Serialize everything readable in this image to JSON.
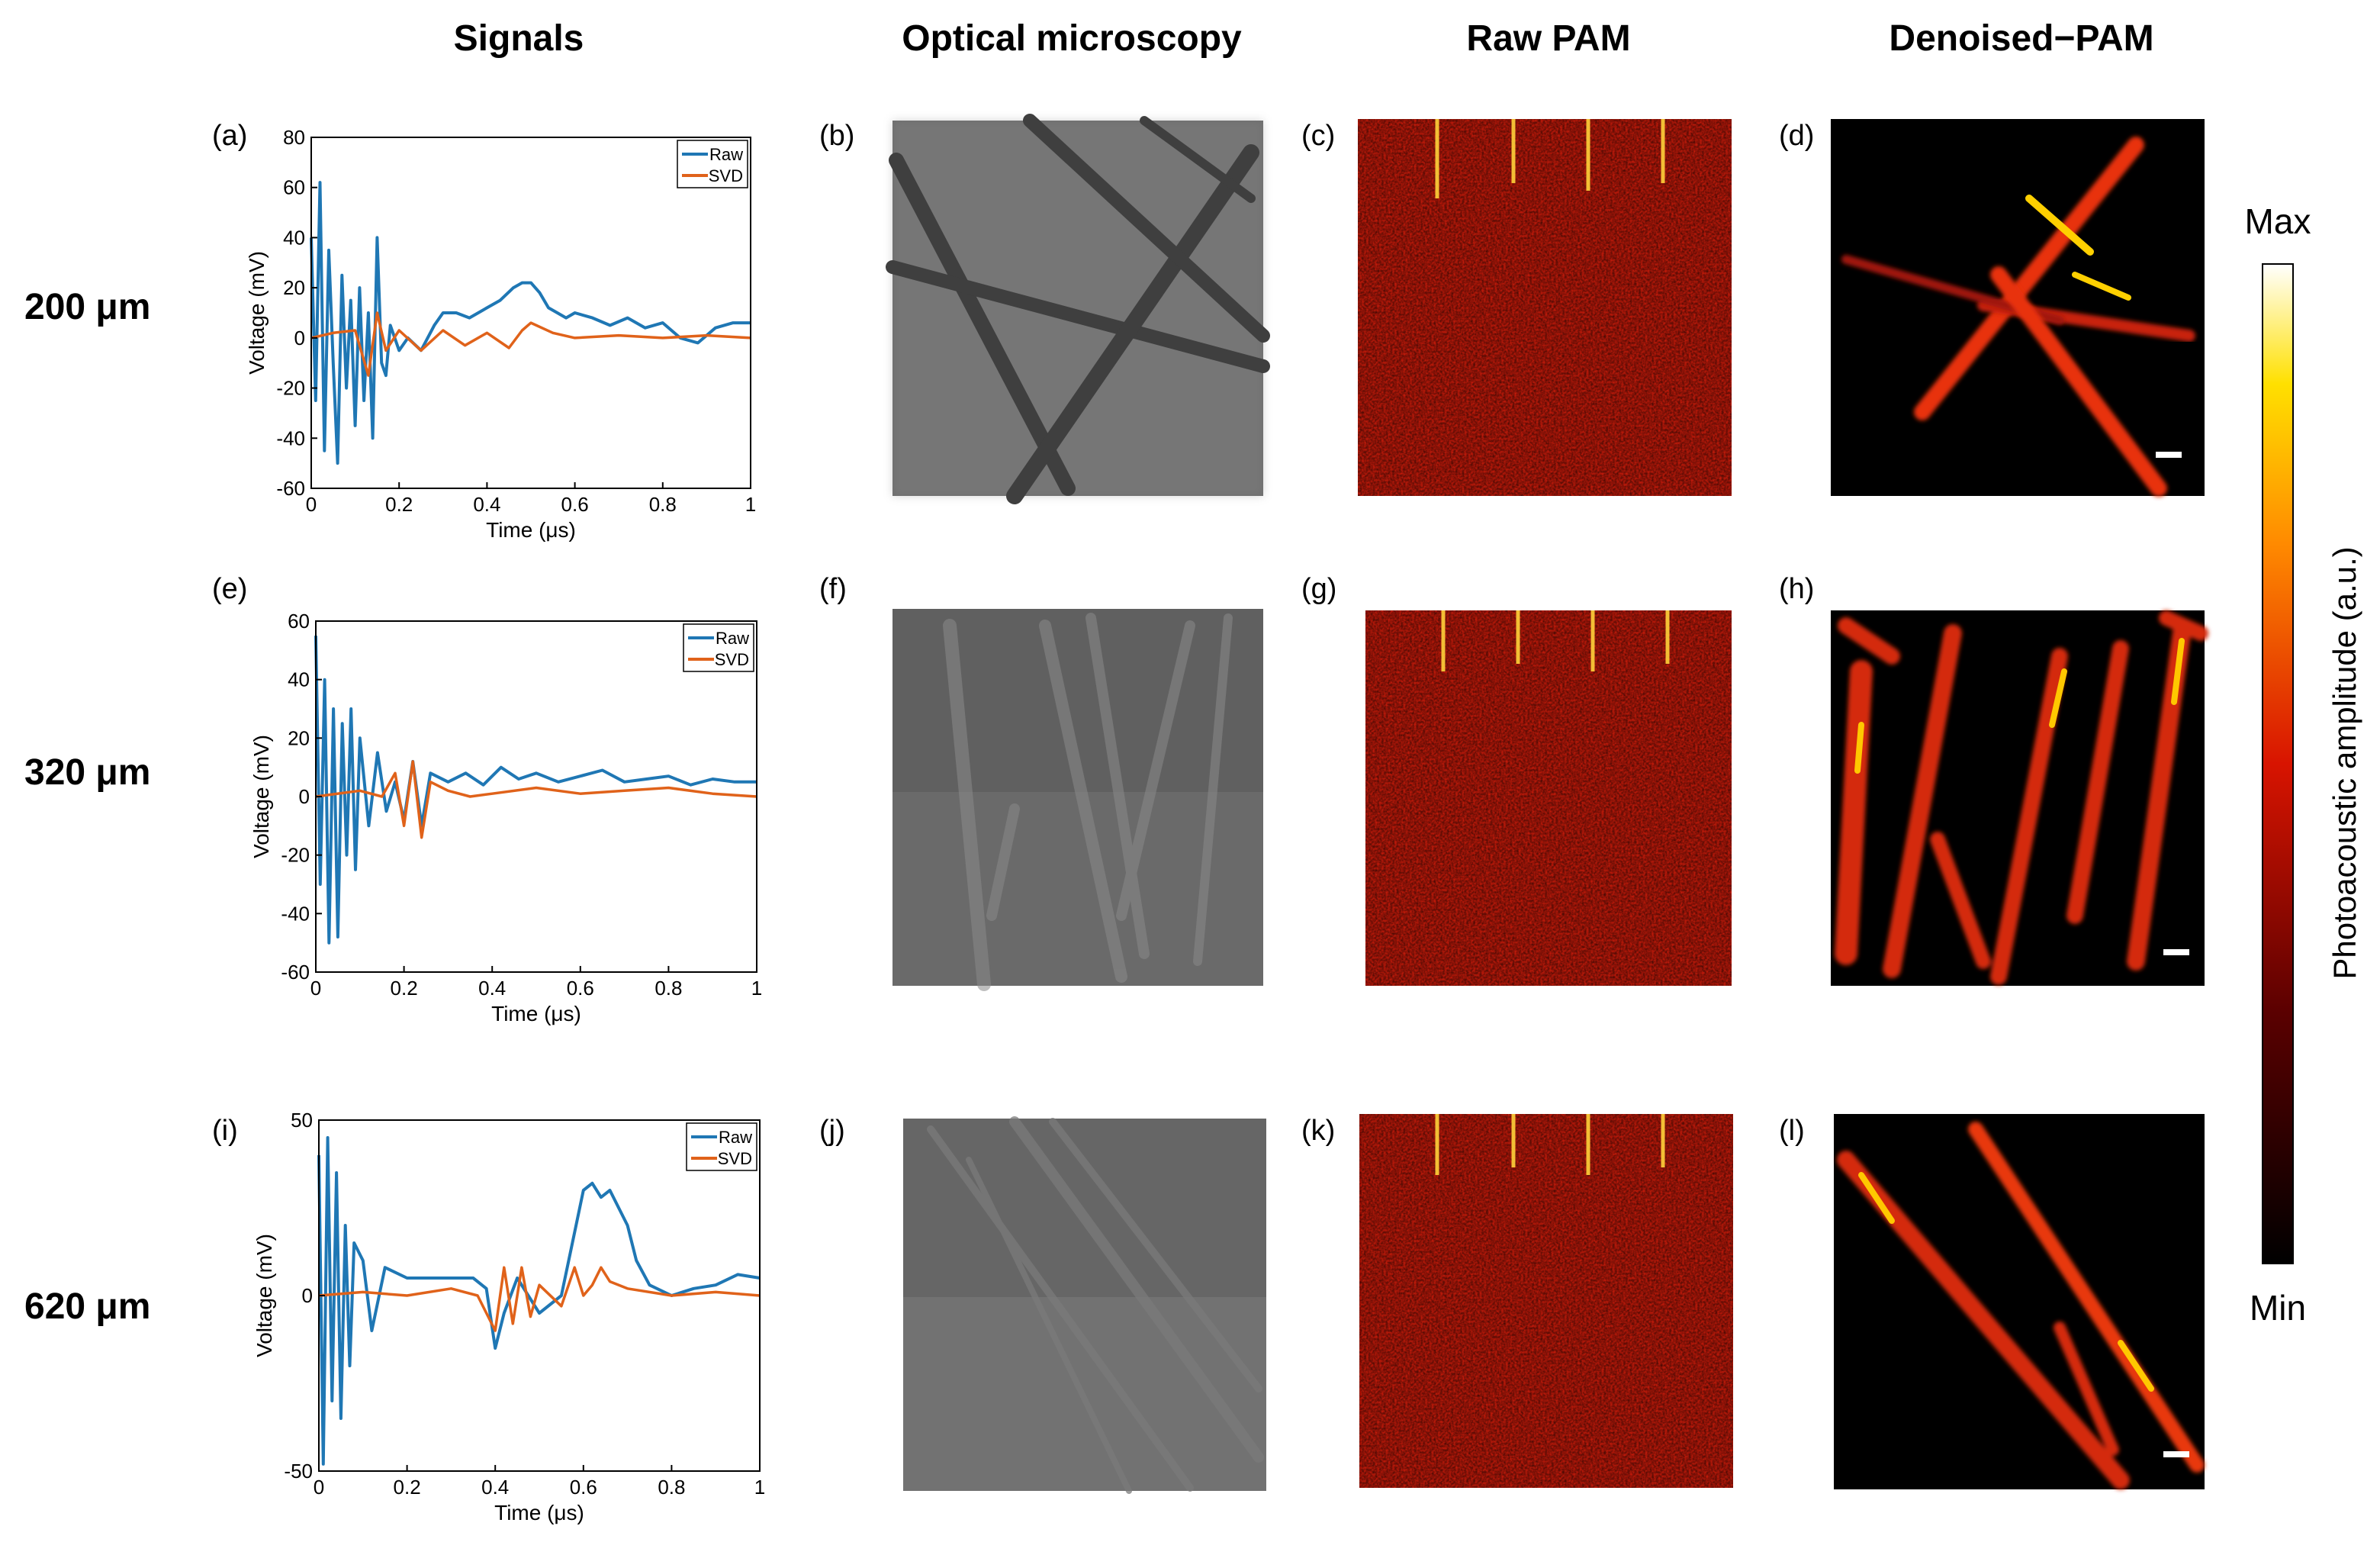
{
  "column_headers": [
    "Signals",
    "Optical microscopy",
    "Raw PAM",
    "Denoised−PAM"
  ],
  "row_labels": [
    "200 μm",
    "320 μm",
    "620 μm"
  ],
  "panel_labels": [
    "(a)",
    "(b)",
    "(c)",
    "(d)",
    "(e)",
    "(f)",
    "(g)",
    "(h)",
    "(i)",
    "(j)",
    "(k)",
    "(l)"
  ],
  "colorbar": {
    "max_label": "Max",
    "min_label": "Min",
    "title": "Photoacoustic amplitude (a.u.)"
  },
  "colors": {
    "raw": "#1f77b4",
    "svd": "#e0621a"
  },
  "chart_data": [
    {
      "type": "line",
      "panel": "(a)",
      "xlabel": "Time (μs)",
      "ylabel": "Voltage (mV)",
      "xlim": [
        0,
        1
      ],
      "ylim": [
        -60,
        80
      ],
      "xticks": [
        "0",
        "0.2",
        "0.4",
        "0.6",
        "0.8",
        "1"
      ],
      "yticks": [
        "-60",
        "-40",
        "-20",
        "0",
        "20",
        "40",
        "60",
        "80"
      ],
      "legend": [
        "Raw",
        "SVD"
      ],
      "series": [
        {
          "name": "Raw",
          "x": [
            0,
            0.01,
            0.02,
            0.03,
            0.04,
            0.05,
            0.06,
            0.07,
            0.08,
            0.09,
            0.1,
            0.11,
            0.12,
            0.13,
            0.14,
            0.15,
            0.16,
            0.17,
            0.18,
            0.2,
            0.22,
            0.25,
            0.28,
            0.3,
            0.33,
            0.36,
            0.4,
            0.43,
            0.46,
            0.48,
            0.5,
            0.52,
            0.54,
            0.56,
            0.58,
            0.6,
            0.64,
            0.68,
            0.72,
            0.76,
            0.8,
            0.84,
            0.88,
            0.92,
            0.96,
            1.0
          ],
          "y": [
            40,
            -25,
            62,
            -45,
            35,
            -10,
            -50,
            25,
            -20,
            15,
            -35,
            20,
            -25,
            10,
            -40,
            40,
            -10,
            -15,
            5,
            -5,
            0,
            -5,
            5,
            10,
            10,
            8,
            12,
            15,
            20,
            22,
            22,
            18,
            12,
            10,
            8,
            10,
            8,
            5,
            8,
            4,
            6,
            0,
            -2,
            4,
            6,
            6
          ]
        },
        {
          "name": "SVD",
          "x": [
            0,
            0.05,
            0.1,
            0.13,
            0.15,
            0.17,
            0.2,
            0.25,
            0.3,
            0.35,
            0.4,
            0.45,
            0.48,
            0.5,
            0.55,
            0.6,
            0.7,
            0.8,
            0.9,
            1.0
          ],
          "y": [
            0,
            2,
            3,
            -15,
            10,
            -5,
            3,
            -5,
            3,
            -3,
            2,
            -4,
            3,
            6,
            2,
            0,
            1,
            0,
            1,
            0
          ]
        }
      ]
    },
    {
      "type": "line",
      "panel": "(e)",
      "xlabel": "Time (μs)",
      "ylabel": "Voltage (mV)",
      "xlim": [
        0,
        1
      ],
      "ylim": [
        -60,
        60
      ],
      "xticks": [
        "0",
        "0.2",
        "0.4",
        "0.6",
        "0.8",
        "1"
      ],
      "yticks": [
        "-60",
        "-40",
        "-20",
        "0",
        "20",
        "40",
        "60"
      ],
      "legend": [
        "Raw",
        "SVD"
      ],
      "series": [
        {
          "name": "Raw",
          "x": [
            0,
            0.01,
            0.02,
            0.03,
            0.04,
            0.05,
            0.06,
            0.07,
            0.08,
            0.09,
            0.1,
            0.12,
            0.14,
            0.16,
            0.18,
            0.2,
            0.22,
            0.24,
            0.26,
            0.3,
            0.34,
            0.38,
            0.42,
            0.46,
            0.5,
            0.55,
            0.6,
            0.65,
            0.7,
            0.75,
            0.8,
            0.85,
            0.9,
            0.95,
            1.0
          ],
          "y": [
            55,
            -30,
            40,
            -50,
            30,
            -48,
            25,
            -20,
            30,
            -25,
            20,
            -10,
            15,
            -5,
            5,
            -8,
            12,
            -10,
            8,
            5,
            8,
            4,
            10,
            6,
            8,
            5,
            7,
            9,
            5,
            6,
            7,
            4,
            6,
            5,
            5
          ]
        },
        {
          "name": "SVD",
          "x": [
            0,
            0.1,
            0.15,
            0.18,
            0.2,
            0.22,
            0.24,
            0.26,
            0.3,
            0.35,
            0.4,
            0.5,
            0.6,
            0.7,
            0.8,
            0.9,
            1.0
          ],
          "y": [
            0,
            2,
            0,
            8,
            -10,
            12,
            -14,
            5,
            2,
            0,
            1,
            3,
            1,
            2,
            3,
            1,
            0
          ]
        }
      ]
    },
    {
      "type": "line",
      "panel": "(i)",
      "xlabel": "Time (μs)",
      "ylabel": "Voltage (mV)",
      "xlim": [
        0,
        1
      ],
      "ylim": [
        -50,
        50
      ],
      "xticks": [
        "0",
        "0.2",
        "0.4",
        "0.6",
        "0.8",
        "1"
      ],
      "yticks": [
        "-50",
        "0",
        "50"
      ],
      "legend": [
        "Raw",
        "SVD"
      ],
      "series": [
        {
          "name": "Raw",
          "x": [
            0,
            0.01,
            0.02,
            0.03,
            0.04,
            0.05,
            0.06,
            0.07,
            0.08,
            0.1,
            0.12,
            0.15,
            0.2,
            0.25,
            0.3,
            0.35,
            0.38,
            0.4,
            0.42,
            0.45,
            0.5,
            0.55,
            0.6,
            0.62,
            0.64,
            0.66,
            0.7,
            0.72,
            0.75,
            0.8,
            0.85,
            0.9,
            0.95,
            1.0
          ],
          "y": [
            40,
            -48,
            45,
            -30,
            35,
            -35,
            20,
            -20,
            15,
            10,
            -10,
            8,
            5,
            5,
            5,
            5,
            2,
            -15,
            -5,
            5,
            -5,
            0,
            30,
            32,
            28,
            30,
            20,
            10,
            3,
            0,
            2,
            3,
            6,
            5
          ]
        },
        {
          "name": "SVD",
          "x": [
            0,
            0.1,
            0.2,
            0.3,
            0.36,
            0.4,
            0.42,
            0.44,
            0.46,
            0.48,
            0.5,
            0.55,
            0.58,
            0.6,
            0.62,
            0.64,
            0.66,
            0.7,
            0.8,
            0.9,
            1.0
          ],
          "y": [
            0,
            1,
            0,
            2,
            0,
            -10,
            8,
            -8,
            8,
            -6,
            3,
            -3,
            8,
            0,
            3,
            8,
            4,
            2,
            0,
            1,
            0
          ]
        }
      ]
    }
  ]
}
